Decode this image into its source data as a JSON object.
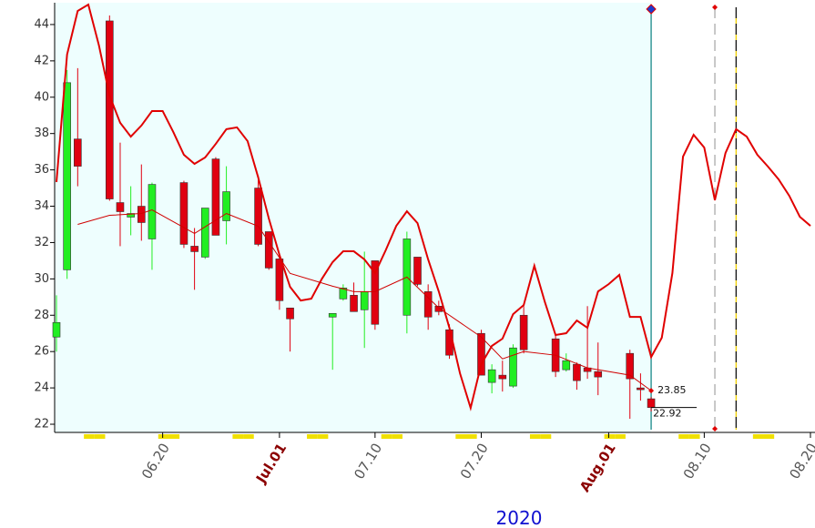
{
  "chart_data": {
    "type": "candlestick",
    "year": "2020",
    "x": [
      "06.10",
      "06.11",
      "06.12",
      "06.15",
      "06.16",
      "06.17",
      "06.18",
      "06.19",
      "06.22",
      "06.23",
      "06.24",
      "06.25",
      "06.26",
      "06.29",
      "06.30",
      "07.01",
      "07.02",
      "07.06",
      "07.07",
      "07.08",
      "07.09",
      "07.10",
      "07.13",
      "07.14",
      "07.15",
      "07.16",
      "07.17",
      "07.20",
      "07.21",
      "07.22",
      "07.23",
      "07.24",
      "07.27",
      "07.28",
      "07.29",
      "07.30",
      "07.31",
      "08.03",
      "08.04",
      "08.05"
    ],
    "open": [
      26.8,
      30.5,
      37.7,
      44.2,
      34.2,
      33.4,
      34.0,
      32.2,
      35.3,
      31.8,
      31.2,
      36.6,
      33.2,
      35.0,
      32.6,
      31.1,
      28.4,
      27.9,
      28.9,
      29.1,
      28.3,
      31.0,
      28.0,
      31.2,
      29.3,
      28.5,
      27.2,
      27.0,
      24.3,
      24.7,
      24.1,
      28.0,
      26.7,
      25.0,
      25.3,
      25.1,
      24.9,
      25.9,
      24.0,
      23.4
    ],
    "high": [
      29.1,
      41.5,
      41.6,
      44.5,
      37.5,
      35.1,
      36.3,
      35.3,
      35.4,
      32.8,
      33.9,
      36.7,
      36.2,
      35.7,
      32.6,
      31.3,
      28.4,
      28.1,
      29.7,
      29.8,
      31.5,
      31.0,
      32.6,
      31.2,
      29.7,
      28.8,
      27.5,
      27.2,
      25.3,
      25.5,
      26.4,
      28.6,
      27.0,
      25.9,
      25.4,
      28.5,
      26.5,
      26.1,
      24.8,
      23.5
    ],
    "low": [
      26.0,
      30.0,
      35.1,
      34.3,
      31.8,
      32.4,
      32.1,
      30.5,
      31.7,
      29.4,
      31.1,
      32.4,
      31.9,
      31.8,
      30.5,
      28.3,
      26.0,
      25.0,
      28.8,
      28.2,
      26.2,
      27.2,
      27.0,
      29.6,
      27.2,
      28.0,
      25.6,
      24.7,
      23.7,
      23.8,
      24.0,
      25.9,
      24.6,
      24.9,
      23.9,
      24.5,
      23.6,
      22.3,
      23.3,
      22.7
    ],
    "close": [
      27.6,
      40.8,
      36.2,
      34.4,
      33.7,
      33.6,
      33.1,
      35.2,
      31.9,
      31.5,
      33.9,
      32.4,
      34.8,
      31.9,
      30.6,
      28.8,
      27.8,
      28.1,
      29.5,
      28.2,
      29.3,
      27.5,
      32.2,
      29.7,
      27.9,
      28.2,
      25.8,
      24.7,
      25.0,
      24.5,
      26.2,
      26.1,
      24.9,
      25.5,
      24.4,
      24.9,
      24.6,
      24.5,
      23.9,
      22.92
    ],
    "up_color": "#22ee22",
    "down_color": "#e00010",
    "series": [
      {
        "color": "#e00000",
        "width": 2,
        "x": [
          "06.10",
          "06.11",
          "06.12",
          "06.13",
          "06.14",
          "06.15",
          "06.16",
          "06.17",
          "06.18",
          "06.19",
          "06.20",
          "06.21",
          "06.22",
          "06.23",
          "06.24",
          "06.25",
          "06.26",
          "06.27",
          "06.28",
          "06.29",
          "06.30",
          "07.01",
          "07.02",
          "07.03",
          "07.04",
          "07.05",
          "07.06",
          "07.07",
          "07.08",
          "07.09",
          "07.10",
          "07.11",
          "07.12",
          "07.13",
          "07.14",
          "07.15",
          "07.16",
          "07.17",
          "07.18",
          "07.19",
          "07.20",
          "07.21",
          "07.22",
          "07.23",
          "07.24",
          "07.25",
          "07.26",
          "07.27",
          "07.28",
          "07.29",
          "07.30",
          "07.31",
          "08.01",
          "08.02",
          "08.03",
          "08.04",
          "08.05",
          "08.06",
          "08.07",
          "08.08",
          "08.09",
          "08.10",
          "08.11",
          "08.12",
          "08.13",
          "08.14",
          "08.15",
          "08.16",
          "08.17",
          "08.18",
          "08.19",
          "08.20"
        ],
        "values": [
          35.33,
          42.35,
          44.75,
          45.1,
          42.85,
          40.09,
          38.59,
          37.83,
          38.44,
          39.24,
          39.24,
          38.09,
          36.83,
          36.33,
          36.68,
          37.43,
          38.24,
          38.34,
          37.58,
          35.58,
          33.32,
          31.32,
          29.56,
          28.81,
          28.91,
          30.01,
          30.92,
          31.52,
          31.52,
          31.07,
          30.32,
          31.57,
          32.92,
          33.72,
          33.07,
          31.07,
          29.31,
          27.31,
          24.8,
          22.9,
          25.3,
          26.31,
          26.71,
          28.06,
          28.56,
          30.72,
          28.71,
          26.91,
          27.01,
          27.71,
          27.31,
          29.31,
          29.71,
          30.22,
          27.91,
          27.91,
          25.7,
          26.76,
          30.32,
          36.73,
          37.93,
          37.23,
          34.33,
          36.93,
          38.24,
          37.83,
          36.83,
          36.18,
          35.48,
          34.58,
          33.42,
          32.92
        ]
      },
      {
        "color": "#d00000",
        "width": 1,
        "x": [
          "06.12",
          "06.15",
          "06.18",
          "06.19",
          "06.23",
          "06.26",
          "06.29",
          "07.02",
          "07.06",
          "07.08",
          "07.10",
          "07.13",
          "07.16",
          "07.20",
          "07.22",
          "07.24",
          "07.27",
          "07.30",
          "08.03",
          "08.05"
        ],
        "values": [
          33.0,
          33.5,
          33.6,
          33.8,
          32.5,
          33.6,
          32.9,
          30.3,
          29.6,
          29.3,
          29.3,
          30.1,
          28.4,
          26.8,
          25.6,
          26.0,
          25.8,
          25.1,
          24.7,
          23.85
        ]
      }
    ],
    "vlines": [
      {
        "x": "08.05",
        "color": "#1a8a8a",
        "dashed": false
      },
      {
        "x": "08.11",
        "color": "#aaaaaa",
        "dashed": true
      },
      {
        "x": "08.13",
        "color": "#111111",
        "dashed": true
      }
    ],
    "ylim": [
      21.55,
      45.2
    ],
    "yticks": [
      22,
      24,
      26,
      28,
      30,
      32,
      34,
      36,
      38,
      40,
      42,
      44
    ],
    "xlim": [
      "06.10",
      "08.20"
    ],
    "xticks": [
      "06.20",
      {
        "value": "07.01",
        "label": "Jul.01"
      },
      "07.10",
      "07.20",
      {
        "value": "08.01",
        "label": "Aug.01"
      },
      "08.10",
      "08.20"
    ]
  }
}
